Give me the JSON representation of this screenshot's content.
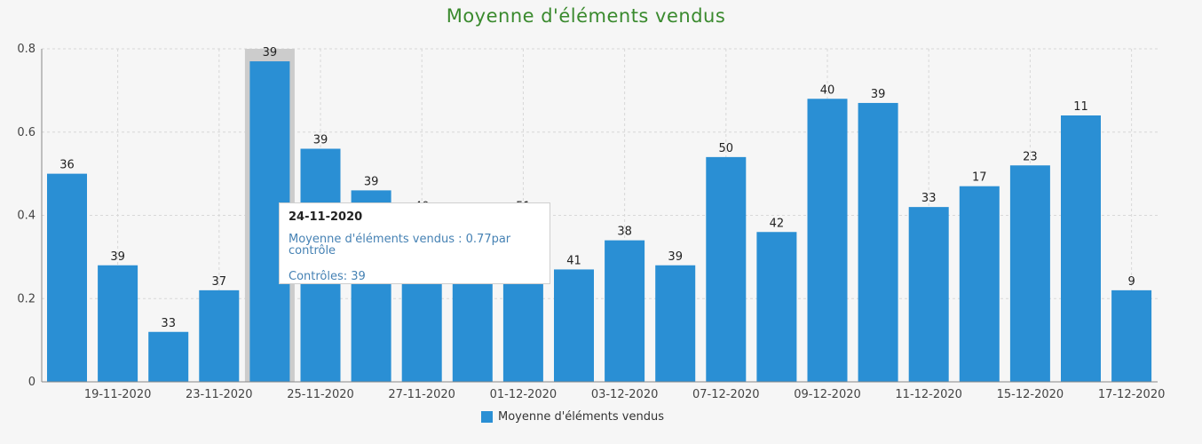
{
  "colors": {
    "bar": "#2a8fd4",
    "title": "#3a8a2e",
    "highlight": "#cccccc",
    "tooltip_text": "#4682b4"
  },
  "chart_data": {
    "type": "bar",
    "title": "Moyenne d'éléments vendus",
    "xlabel": "",
    "ylabel": "",
    "ylim": [
      0,
      0.8
    ],
    "yticks": [
      "0",
      "0.2",
      "0.4",
      "0.6",
      "0.8"
    ],
    "grid": true,
    "legend_position": "bottom",
    "x_tick_labels": [
      "19-11-2020",
      "23-11-2020",
      "25-11-2020",
      "27-11-2020",
      "01-12-2020",
      "03-12-2020",
      "07-12-2020",
      "09-12-2020",
      "11-12-2020",
      "15-12-2020",
      "17-12-2020"
    ],
    "series": [
      {
        "name": "Moyenne d'éléments vendus",
        "values": [
          0.5,
          0.28,
          0.12,
          0.22,
          0.77,
          0.56,
          0.46,
          0.4,
          0.38,
          0.4,
          0.27,
          0.34,
          0.28,
          0.54,
          0.36,
          0.68,
          0.67,
          0.42,
          0.47,
          0.52,
          0.64,
          0.22
        ],
        "data_labels": [
          "36",
          "39",
          "33",
          "37",
          "39",
          "39",
          "39",
          "40",
          "",
          "51",
          "41",
          "38",
          "39",
          "50",
          "42",
          "40",
          "39",
          "33",
          "17",
          "23",
          "11",
          "9"
        ]
      }
    ],
    "highlighted_index": 4
  },
  "tooltip": {
    "date": "24-11-2020",
    "value_line": "Moyenne d'éléments vendus : 0.77par contrôle",
    "count_line": "Contrôles: 39"
  },
  "legend": {
    "label": "Moyenne d'éléments vendus"
  }
}
